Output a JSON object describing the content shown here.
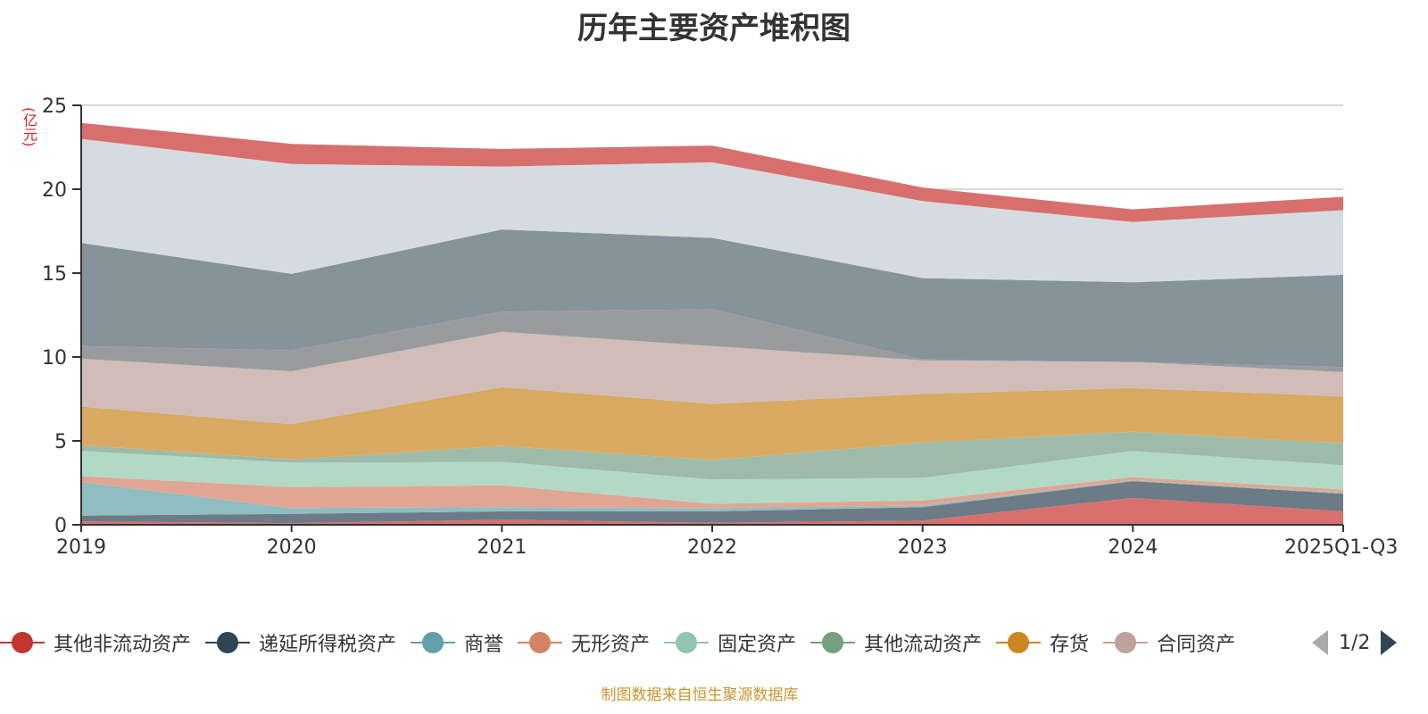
{
  "title": "历年主要资产堆积图",
  "unit_label": "(亿元)",
  "source": "制图数据来自恒生聚源数据库",
  "legend": {
    "page_indicator": "1/2",
    "prev_icon": "triangle-left-icon",
    "next_icon": "triangle-right-icon"
  },
  "chart_data": {
    "type": "area",
    "stacked": true,
    "title": "历年主要资产堆积图",
    "ylabel": "(亿元)",
    "xlabel": "",
    "ylim": [
      0,
      25
    ],
    "yticks": [
      "0",
      "5",
      "10",
      "15",
      "20",
      "25"
    ],
    "grid": true,
    "legend_position": "bottom",
    "categories": [
      "2019",
      "2020",
      "2021",
      "2022",
      "2023",
      "2024",
      "2025Q1-Q3"
    ],
    "series": [
      {
        "name": "其他非流动资产",
        "color": "#c23531",
        "fill": "#d7706d",
        "values": [
          0.2,
          0.1,
          0.3,
          0.12,
          0.25,
          1.6,
          0.8
        ],
        "legend": true
      },
      {
        "name": "递延所得税资产",
        "color": "#2f4554",
        "fill": "#6d7b86",
        "values": [
          0.35,
          0.55,
          0.5,
          0.68,
          0.8,
          1.0,
          1.05
        ],
        "legend": true
      },
      {
        "name": "商誉",
        "color": "#61a0a8",
        "fill": "#90bcc2",
        "values": [
          2.0,
          0.35,
          0.25,
          0.19,
          0.1,
          0.05,
          0.05
        ],
        "legend": true
      },
      {
        "name": "无形资产",
        "color": "#d48265",
        "fill": "#e1a693",
        "values": [
          0.35,
          1.25,
          1.3,
          0.26,
          0.3,
          0.2,
          0.2
        ],
        "legend": true
      },
      {
        "name": "固定资产",
        "color": "#91c7ae",
        "fill": "#b2d8c6",
        "values": [
          1.5,
          1.45,
          1.4,
          1.45,
          1.35,
          1.55,
          1.45
        ],
        "legend": true
      },
      {
        "name": "其他流动资产",
        "color": "#749f83",
        "fill": "#9dbba8",
        "values": [
          0.35,
          0.2,
          0.95,
          1.15,
          2.1,
          1.15,
          1.3
        ],
        "legend": true
      },
      {
        "name": "存货",
        "color": "#ca8622",
        "fill": "#d9a962",
        "values": [
          2.3,
          2.1,
          3.5,
          3.35,
          2.9,
          2.6,
          2.8
        ],
        "legend": true
      },
      {
        "name": "合同资产",
        "color": "#bda29a",
        "fill": "#d1bcb7",
        "values": [
          2.85,
          3.15,
          3.3,
          3.45,
          2.0,
          1.55,
          1.45
        ],
        "legend": true
      },
      {
        "name": "",
        "color": "#6e7074",
        "fill": "#9a9b9f",
        "values": [
          0.75,
          1.25,
          1.2,
          2.2,
          0.05,
          0.0,
          0.3
        ],
        "legend": false
      },
      {
        "name": "",
        "color": "#546570",
        "fill": "#87939a",
        "values": [
          6.15,
          4.55,
          4.9,
          4.25,
          4.85,
          4.75,
          5.5
        ],
        "legend": false
      },
      {
        "name": "",
        "color": "#c4ccd3",
        "fill": "#d6dbe1",
        "values": [
          6.2,
          6.55,
          3.75,
          4.5,
          4.6,
          3.6,
          3.85
        ],
        "legend": false
      },
      {
        "name": "",
        "color": "#c23531",
        "fill": "#d7706d",
        "values": [
          0.95,
          1.2,
          1.05,
          1.0,
          0.8,
          0.75,
          0.8
        ],
        "legend": false
      }
    ]
  }
}
